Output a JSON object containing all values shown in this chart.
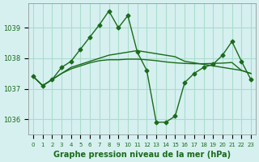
{
  "title": "Graphe pression niveau de la mer (hPa)",
  "background_color": "#d6f0f0",
  "grid_color": "#aaddcc",
  "line_color": "#1a6b1a",
  "x_labels": [
    "0",
    "1",
    "2",
    "3",
    "4",
    "5",
    "6",
    "7",
    "8",
    "9",
    "10",
    "11",
    "12",
    "13",
    "14",
    "15",
    "16",
    "17",
    "18",
    "19",
    "20",
    "21",
    "22",
    "23"
  ],
  "ylim": [
    1035.5,
    1039.8
  ],
  "yticks": [
    1036,
    1037,
    1038,
    1039
  ],
  "series": [
    [
      1037.4,
      1037.1,
      1037.3,
      1037.7,
      1037.9,
      1038.3,
      1038.7,
      1039.1,
      1039.55,
      1039.0,
      1039.4,
      1038.2,
      1037.6,
      1035.9,
      1035.9,
      1036.1,
      1037.2,
      1037.5,
      1037.7,
      1037.8,
      1038.1,
      1038.55,
      1037.9,
      1037.3
    ],
    [
      1037.4,
      1037.1,
      1037.3,
      1037.5,
      1037.7,
      1037.8,
      1037.9,
      1038.0,
      1038.1,
      1038.15,
      1038.2,
      1038.25,
      1038.2,
      1038.15,
      1038.1,
      1038.05,
      1037.9,
      1037.85,
      1037.8,
      1037.75,
      1037.7,
      1037.65,
      1037.6,
      1037.5
    ],
    [
      1037.4,
      1037.1,
      1037.3,
      1037.5,
      1037.65,
      1037.75,
      1037.85,
      1037.92,
      1037.95,
      1037.95,
      1037.97,
      1037.97,
      1037.95,
      1037.92,
      1037.88,
      1037.85,
      1037.83,
      1037.82,
      1037.82,
      1037.83,
      1037.84,
      1037.86,
      1037.6,
      1037.5
    ]
  ],
  "markers": [
    [
      1037.4,
      1037.1,
      1037.3,
      1037.7,
      1037.9,
      1038.3,
      1038.7,
      1039.1,
      1039.55,
      1039.0,
      1039.4,
      1038.2,
      1037.6,
      1035.9,
      1035.9,
      1036.1,
      1037.2,
      1037.5,
      1037.7,
      1037.8,
      1038.1,
      1038.55,
      1037.9,
      1037.3
    ],
    [
      null,
      null,
      null,
      null,
      null,
      null,
      null,
      null,
      null,
      null,
      null,
      null,
      null,
      null,
      null,
      null,
      null,
      null,
      null,
      null,
      null,
      null,
      null,
      null
    ],
    [
      null,
      null,
      null,
      null,
      null,
      null,
      null,
      null,
      null,
      null,
      null,
      null,
      null,
      null,
      null,
      null,
      null,
      null,
      null,
      null,
      null,
      null,
      null,
      null
    ]
  ]
}
